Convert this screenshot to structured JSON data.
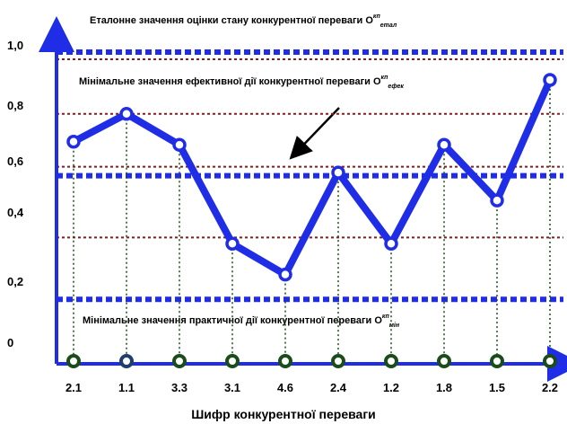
{
  "chart_data": {
    "type": "line",
    "categories": [
      "2.1",
      "1.1",
      "3.3",
      "3.1",
      "4.6",
      "2.4",
      "1.2",
      "1.8",
      "1.5",
      "2.2"
    ],
    "series": [
      {
        "values": [
          0.71,
          0.8,
          0.7,
          0.38,
          0.28,
          0.61,
          0.38,
          0.7,
          0.52,
          0.91
        ],
        "color": "#1f2de6"
      }
    ],
    "ylim": [
      0,
      1.0
    ],
    "ytick_labels": [
      "0",
      "0,2",
      "0,4",
      "0,6",
      "0,8",
      "1,0"
    ],
    "yticks": [
      0,
      0.2,
      0.4,
      0.6,
      0.8,
      1.0
    ],
    "xlabel": "Шифр конкурентної переваги",
    "ylabel": "",
    "grid": true,
    "reference_lines_blue": [
      1.0,
      0.6,
      0.2
    ],
    "reference_lines_darkred": [
      0.8,
      0.4
    ],
    "annotations": {
      "etalon": {
        "text": "Еталонне значення оцінки стану конкурентної переваги О",
        "sup": "кп",
        "sub": "етал"
      },
      "efek": {
        "text": "Мінімальне значення ефективної дії конкурентної переваги О",
        "sup": "кп",
        "sub": "ефек"
      },
      "min": {
        "text": "Мінімальне значення практичної дії конкурентної переваги О",
        "sup": "кп",
        "sub": "мін"
      }
    },
    "colors": {
      "series_line": "#1f2de6",
      "reference_blue": "#1f2de6",
      "grid_darkred": "#8b1a1a",
      "marker_green": "#1a4d1a",
      "axis": "#1f2de6"
    }
  }
}
